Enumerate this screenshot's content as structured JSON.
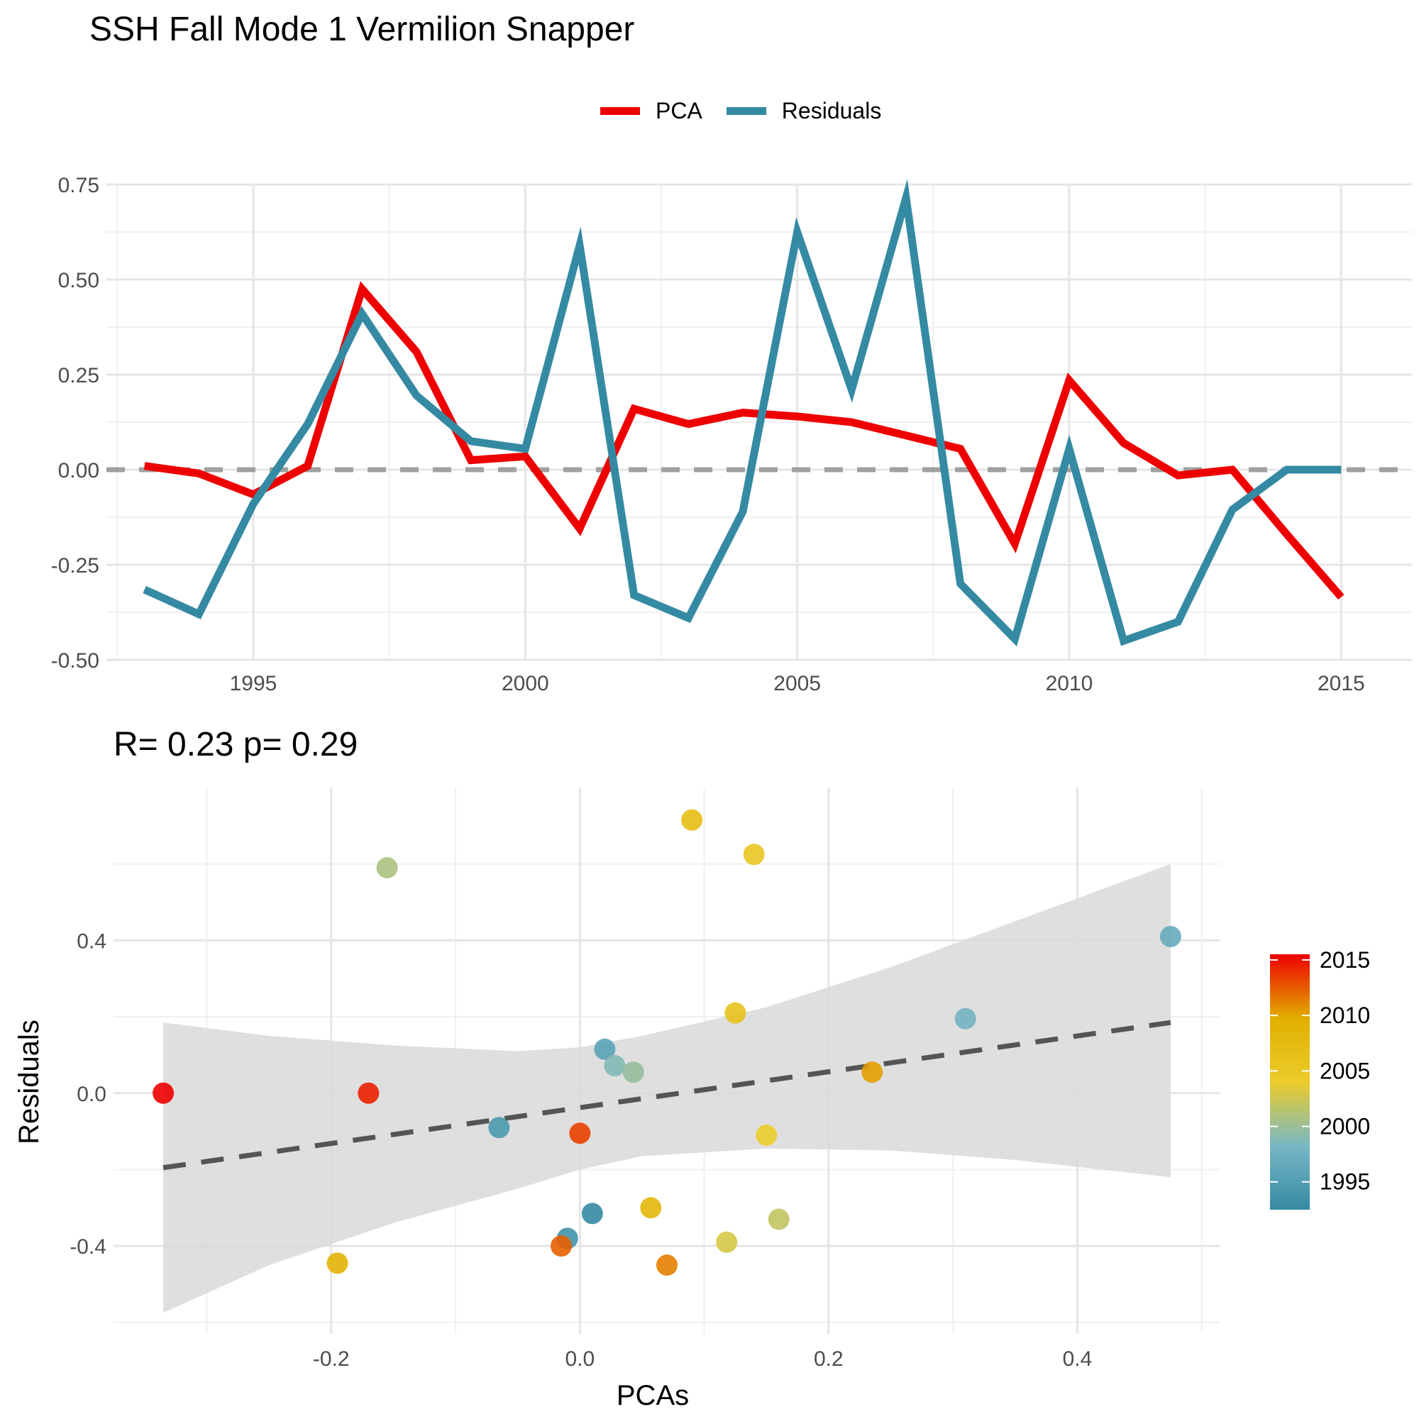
{
  "figure_title": "SSH Fall Mode 1 Vermilion Snapper",
  "legend": [
    {
      "label": "PCA",
      "color": "#ee0000"
    },
    {
      "label": "Residuals",
      "color": "#358aa3"
    }
  ],
  "scatter_stat": "R= 0.23  p= 0.29",
  "chart_data": [
    {
      "type": "line",
      "title": "",
      "xlabel": "",
      "ylabel": "",
      "xlim": [
        1992.3,
        2016.3
      ],
      "ylim": [
        -0.5,
        0.75
      ],
      "x_ticks": [
        1995,
        2000,
        2005,
        2010,
        2015
      ],
      "y_ticks": [
        0.75,
        0.5,
        0.25,
        0.0,
        -0.25,
        -0.5
      ],
      "y_tick_labels": [
        "0.75",
        "0.50",
        "0.25",
        "0.00",
        "-0.25",
        "-0.50"
      ],
      "reference_line": {
        "y": 0,
        "style": "dashed",
        "color": "#a0a0a0"
      },
      "x": [
        1993,
        1994,
        1995,
        1996,
        1997,
        1998,
        1999,
        2000,
        2001,
        2002,
        2003,
        2004,
        2005,
        2006,
        2007,
        2008,
        2009,
        2010,
        2011,
        2012,
        2013,
        2014,
        2015
      ],
      "series": [
        {
          "name": "PCA",
          "color": "#ee0000",
          "values": [
            0.01,
            -0.01,
            -0.065,
            0.01,
            0.475,
            0.31,
            0.025,
            0.035,
            -0.155,
            0.16,
            0.12,
            0.15,
            0.14,
            0.125,
            0.09,
            0.055,
            -0.195,
            0.235,
            0.07,
            -0.015,
            0.0,
            -0.17,
            -0.335
          ]
        },
        {
          "name": "Residuals",
          "color": "#358aa3",
          "values": [
            -0.315,
            -0.38,
            -0.09,
            0.12,
            0.41,
            0.195,
            0.075,
            0.055,
            0.59,
            -0.33,
            -0.39,
            -0.11,
            0.625,
            0.21,
            0.715,
            -0.3,
            -0.445,
            0.055,
            -0.45,
            -0.4,
            -0.105,
            0.0,
            0.0
          ]
        }
      ],
      "grid": true
    },
    {
      "type": "scatter",
      "title": "R= 0.23  p= 0.29",
      "xlabel": "PCAs",
      "ylabel": "Residuals",
      "xlim": [
        -0.375,
        0.515
      ],
      "ylim": [
        -0.63,
        0.8
      ],
      "x_ticks": [
        -0.2,
        0.0,
        0.2,
        0.4
      ],
      "x_tick_labels": [
        "-0.2",
        "0.0",
        "0.2",
        "0.4"
      ],
      "y_ticks": [
        0.4,
        0.0,
        -0.4
      ],
      "y_tick_labels": [
        "0.4",
        "0.0",
        "-0.4"
      ],
      "color_scale": {
        "title": "",
        "range": [
          1993,
          2015
        ],
        "ticks": [
          2015,
          2010,
          2005,
          2000,
          1995
        ],
        "stops": [
          "#358aa3",
          "#78b7c5",
          "#ebcc2a",
          "#e1af00",
          "#ee0000"
        ]
      },
      "points": [
        {
          "year": 1993,
          "x": 0.01,
          "y": -0.315
        },
        {
          "year": 1994,
          "x": -0.01,
          "y": -0.38
        },
        {
          "year": 1995,
          "x": -0.065,
          "y": -0.09
        },
        {
          "year": 1996,
          "x": 0.02,
          "y": 0.115
        },
        {
          "year": 1997,
          "x": 0.475,
          "y": 0.41
        },
        {
          "year": 1998,
          "x": 0.31,
          "y": 0.195
        },
        {
          "year": 1999,
          "x": 0.028,
          "y": 0.072
        },
        {
          "year": 2000,
          "x": 0.043,
          "y": 0.055
        },
        {
          "year": 2001,
          "x": -0.155,
          "y": 0.59
        },
        {
          "year": 2002,
          "x": 0.16,
          "y": -0.33
        },
        {
          "year": 2003,
          "x": 0.118,
          "y": -0.39
        },
        {
          "year": 2004,
          "x": 0.15,
          "y": -0.11
        },
        {
          "year": 2005,
          "x": 0.14,
          "y": 0.625
        },
        {
          "year": 2006,
          "x": 0.125,
          "y": 0.21
        },
        {
          "year": 2007,
          "x": 0.09,
          "y": 0.715
        },
        {
          "year": 2008,
          "x": 0.057,
          "y": -0.3
        },
        {
          "year": 2009,
          "x": -0.195,
          "y": -0.445
        },
        {
          "year": 2010,
          "x": 0.235,
          "y": 0.055
        },
        {
          "year": 2011,
          "x": 0.07,
          "y": -0.45
        },
        {
          "year": 2012,
          "x": -0.015,
          "y": -0.4
        },
        {
          "year": 2013,
          "x": 0.0,
          "y": -0.105
        },
        {
          "year": 2014,
          "x": -0.17,
          "y": 0.0
        },
        {
          "year": 2015,
          "x": -0.335,
          "y": 0.0
        }
      ],
      "fit_line": {
        "style": "dashed",
        "color": "#555555",
        "x": [
          -0.335,
          0.475
        ],
        "y": [
          -0.195,
          0.185
        ]
      },
      "confidence_band": {
        "color": "#d9d9d9",
        "x": [
          -0.335,
          -0.25,
          -0.15,
          -0.05,
          0.0,
          0.05,
          0.15,
          0.25,
          0.35,
          0.475
        ],
        "lower": [
          -0.575,
          -0.45,
          -0.34,
          -0.25,
          -0.2,
          -0.165,
          -0.145,
          -0.15,
          -0.175,
          -0.22
        ],
        "upper": [
          0.185,
          0.15,
          0.125,
          0.11,
          0.12,
          0.15,
          0.225,
          0.33,
          0.45,
          0.6
        ]
      },
      "grid": true
    }
  ]
}
